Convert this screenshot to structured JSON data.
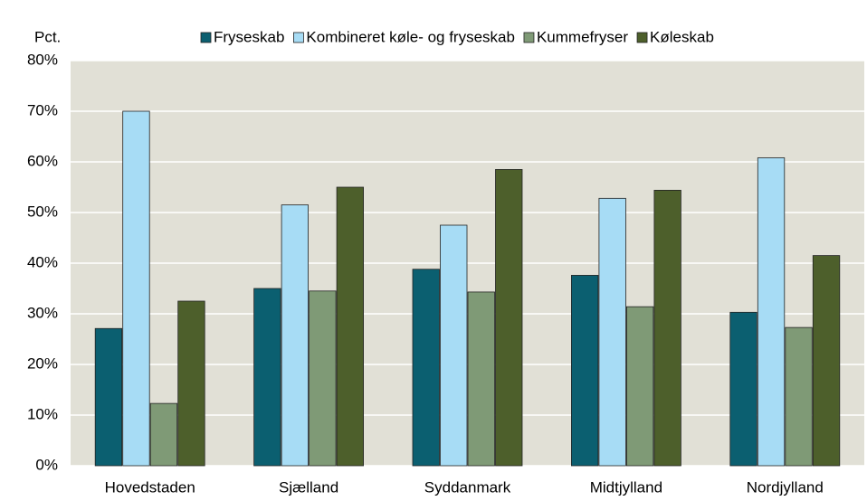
{
  "chart_data": {
    "type": "bar",
    "y_label": "Pct.",
    "categories": [
      "Hovedstaden",
      "Sjælland",
      "Syddanmark",
      "Midtjylland",
      "Nordjylland"
    ],
    "series": [
      {
        "name": "Fryseskab",
        "color": "#0b5f70",
        "values": [
          27.1,
          35.0,
          38.8,
          37.6,
          30.3
        ]
      },
      {
        "name": "Kombineret køle- og fryseskab",
        "color": "#a7dcf5",
        "values": [
          70.0,
          51.5,
          47.5,
          52.8,
          60.8
        ]
      },
      {
        "name": "Kummefryser",
        "color": "#7f9a76",
        "values": [
          12.3,
          34.5,
          34.3,
          31.4,
          27.3
        ]
      },
      {
        "name": "Køleskab",
        "color": "#4d5f2b",
        "values": [
          32.5,
          55.0,
          58.5,
          54.4,
          41.5
        ]
      }
    ],
    "ylim": [
      0,
      80
    ],
    "yticks": [
      {
        "value": 0,
        "label": "0%"
      },
      {
        "value": 10,
        "label": "10%"
      },
      {
        "value": 20,
        "label": "20%"
      },
      {
        "value": 30,
        "label": "30%"
      },
      {
        "value": 40,
        "label": "40%"
      },
      {
        "value": 50,
        "label": "50%"
      },
      {
        "value": 60,
        "label": "60%"
      },
      {
        "value": 70,
        "label": "70%"
      },
      {
        "value": 80,
        "label": "80%"
      }
    ],
    "grid": true,
    "legend": "top"
  }
}
